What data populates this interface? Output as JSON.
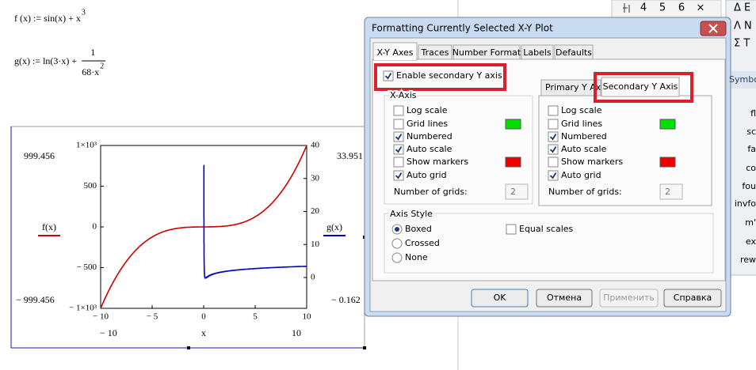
{
  "equations": {
    "f": {
      "lhs": "f (x) := sin(x) + x",
      "exponent": "3"
    },
    "g": {
      "lhs": "g(x) := ln(3·x) +",
      "numerator": "1",
      "denominator": "68·x",
      "denominator_exponent": "2"
    }
  },
  "plot": {
    "xlim": [
      -10,
      10
    ],
    "xticks": [
      {
        "value": -10,
        "label": "− 10"
      },
      {
        "value": -5,
        "label": "− 5"
      },
      0,
      5,
      10
    ],
    "ylim": [
      -1000,
      1000
    ],
    "yticks": [
      {
        "value": 1000,
        "label": "1×10³"
      },
      500,
      0,
      {
        "value": -500,
        "label": "− 500"
      },
      {
        "value": -1000,
        "label": "− 1×10³"
      }
    ],
    "y2lim": [
      -9.34,
      40
    ],
    "y2ticks": [
      40,
      30,
      20,
      10,
      0
    ],
    "y_max_label": "999.456",
    "y_min_label": "− 999.456",
    "y2_max_label": "33.951",
    "y2_max": 33.951,
    "y2_min_label": "− 0.162",
    "x_label": "x",
    "x_min_label": "− 10",
    "x_max_label": "10",
    "traces": [
      {
        "name": "f(x)",
        "color": "#cc0000"
      },
      {
        "name": "g(x)",
        "color": "#0000cc",
        "axis": "y2"
      }
    ]
  },
  "dialog": {
    "title": "Formatting Currently Selected X-Y Plot",
    "tabs": [
      "X-Y Axes",
      "Traces",
      "Number Format",
      "Labels",
      "Defaults"
    ],
    "enable_secondary": {
      "label": "Enable secondary Y axis",
      "checked": true
    },
    "x_axis": {
      "title": "X-Axis",
      "items": [
        {
          "label": "Log scale",
          "checked": false
        },
        {
          "label": "Grid lines",
          "checked": false,
          "color": "#00e000"
        },
        {
          "label": "Numbered",
          "checked": true
        },
        {
          "label": "Auto scale",
          "checked": true
        },
        {
          "label": "Show markers",
          "checked": false,
          "color": "#ee0000"
        },
        {
          "label": "Auto grid",
          "checked": true
        }
      ],
      "grids_label": "Number of grids:",
      "grids_value": "2"
    },
    "y_tabs": [
      "Primary Y Axis",
      "Secondary Y Axis"
    ],
    "y_axis": {
      "items": [
        {
          "label": "Log scale",
          "checked": false
        },
        {
          "label": "Grid lines",
          "checked": false,
          "color": "#00e000"
        },
        {
          "label": "Numbered",
          "checked": true
        },
        {
          "label": "Auto scale",
          "checked": true
        },
        {
          "label": "Show markers",
          "checked": false,
          "color": "#ee0000"
        },
        {
          "label": "Auto grid",
          "checked": true
        }
      ],
      "grids_label": "Number of grids:",
      "grids_value": "2"
    },
    "axis_style": {
      "title": "Axis Style",
      "options": [
        {
          "label": "Boxed",
          "selected": true
        },
        {
          "label": "Crossed",
          "selected": false
        },
        {
          "label": "None",
          "selected": false
        }
      ],
      "equal_scales": {
        "label": "Equal scales",
        "checked": false
      }
    },
    "buttons": [
      {
        "label": "OK",
        "enabled": true
      },
      {
        "label": "Отмена",
        "enabled": true
      },
      {
        "label": "Применить",
        "enabled": false
      },
      {
        "label": "Справка",
        "enabled": true
      }
    ]
  },
  "toolbar": [
    "4",
    "5",
    "6",
    "×"
  ],
  "sidebar": {
    "greek": [
      "Δ Ε",
      "Λ Ν",
      "Σ Τ"
    ],
    "title": "Symbo",
    "items": [
      "fl",
      "sc",
      "fa",
      "co",
      "fou",
      "invfo",
      "m'",
      "ex",
      "rew"
    ]
  }
}
